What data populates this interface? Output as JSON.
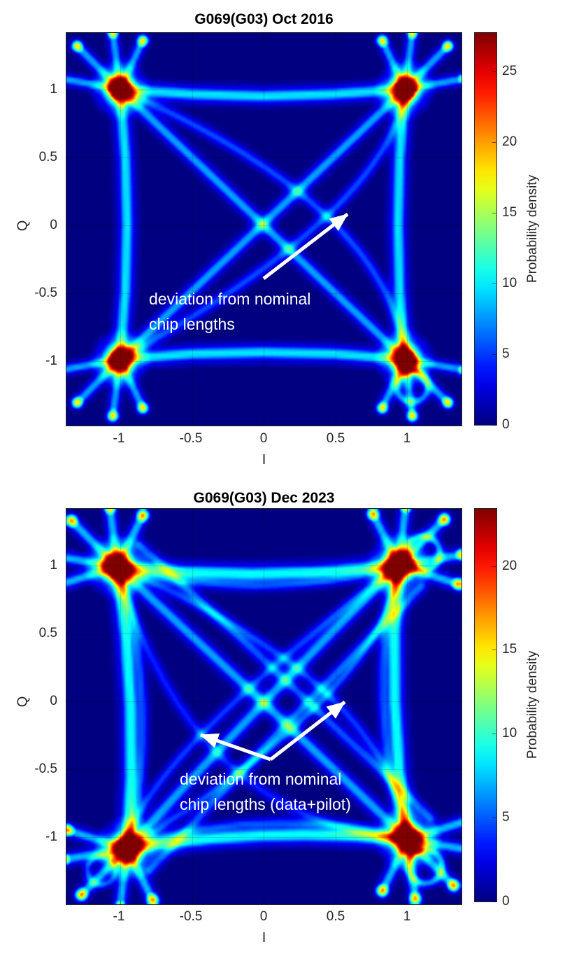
{
  "figures": [
    {
      "title": "G069(G03) Oct 2016",
      "xlabel": "I",
      "ylabel": "Q",
      "x_tick_labels": [
        "-1",
        "-0.5",
        "0",
        "0.5",
        "1"
      ],
      "y_tick_labels": [
        "1",
        "0.5",
        "0",
        "-0.5",
        "-1"
      ],
      "colorbar": {
        "label": "Probability density",
        "tick_labels": [
          "0",
          "5",
          "10",
          "15",
          "20",
          "25"
        ]
      },
      "annotation": {
        "line1": "deviation from nominal",
        "line2": "chip lengths"
      }
    },
    {
      "title": "G069(G03) Dec 2023",
      "xlabel": "I",
      "ylabel": "Q",
      "x_tick_labels": [
        "-1",
        "-0.5",
        "0",
        "0.5",
        "1"
      ],
      "y_tick_labels": [
        "1",
        "0.5",
        "0",
        "-0.5",
        "-1"
      ],
      "colorbar": {
        "label": "Probability density",
        "tick_labels": [
          "0",
          "5",
          "10",
          "15",
          "20"
        ]
      },
      "annotation": {
        "line1": "deviation from nominal",
        "line2": "chip lengths (data+pilot)"
      }
    }
  ],
  "chart_data": [
    {
      "type": "heatmap",
      "subtype": "IQ-constellation-probability-density",
      "title": "G069(G03) Oct 2016",
      "xlabel": "I",
      "ylabel": "Q",
      "xlim": [
        -1.38,
        1.38
      ],
      "ylim": [
        -1.47,
        1.42
      ],
      "x_ticks": [
        -1,
        -0.5,
        0,
        0.5,
        1
      ],
      "y_ticks": [
        -1,
        -0.5,
        0,
        0.5,
        1
      ],
      "grid": true,
      "colormap": "jet",
      "clim": [
        0,
        27.7
      ],
      "colorbar_ticks": [
        0,
        5,
        10,
        15,
        20,
        25
      ],
      "colorbar_label": "Probability density",
      "constellation_points_IQ": [
        [
          -1,
          1
        ],
        [
          1,
          1
        ],
        [
          -1,
          -1
        ],
        [
          1,
          -1
        ]
      ],
      "peak_density": 27.7,
      "annotation": {
        "text": "deviation from nominal chip lengths",
        "arrow_tip_IQ": [
          0.59,
          0.08
        ]
      },
      "structure": [
        "hotspots at the four QPSK constellation points",
        "transition bands along square edges, bowed slightly inward",
        "straight diagonal transition bands crossing at origin",
        "curved deviation arcs bowed toward +I side",
        "outward petal lobes at each corner hotspot",
        "small loop near lower-right corner"
      ]
    },
    {
      "type": "heatmap",
      "subtype": "IQ-constellation-probability-density",
      "title": "G069(G03) Dec 2023",
      "xlabel": "I",
      "ylabel": "Q",
      "xlim": [
        -1.38,
        1.38
      ],
      "ylim": [
        -1.49,
        1.42
      ],
      "x_ticks": [
        -1,
        -0.5,
        0,
        0.5,
        1
      ],
      "y_ticks": [
        -1,
        -0.5,
        0,
        0.5,
        1
      ],
      "grid": true,
      "colormap": "jet",
      "clim": [
        0,
        23.4
      ],
      "colorbar_ticks": [
        0,
        5,
        10,
        15,
        20
      ],
      "colorbar_label": "Probability density",
      "constellation_points_IQ": [
        [
          -1,
          1
        ],
        [
          1,
          1
        ],
        [
          -1,
          -1
        ],
        [
          1,
          -1
        ]
      ],
      "peak_density": 23.4,
      "annotation": {
        "text": "deviation from nominal chip lengths (data+pilot)",
        "arrow_tips_IQ": [
          [
            -0.44,
            -0.25
          ],
          [
            0.57,
            0.0
          ]
        ]
      },
      "structure": [
        "hotspots at the four QPSK constellation points (lower-left point slightly shifted)",
        "wider transition bands along square edges, some doubled",
        "doubled parallel diagonal transition bands (data+pilot)",
        "deviation arcs bowed toward both sides of the diagonals",
        "extra petal lobes and small loops at corner hotspots"
      ]
    }
  ]
}
